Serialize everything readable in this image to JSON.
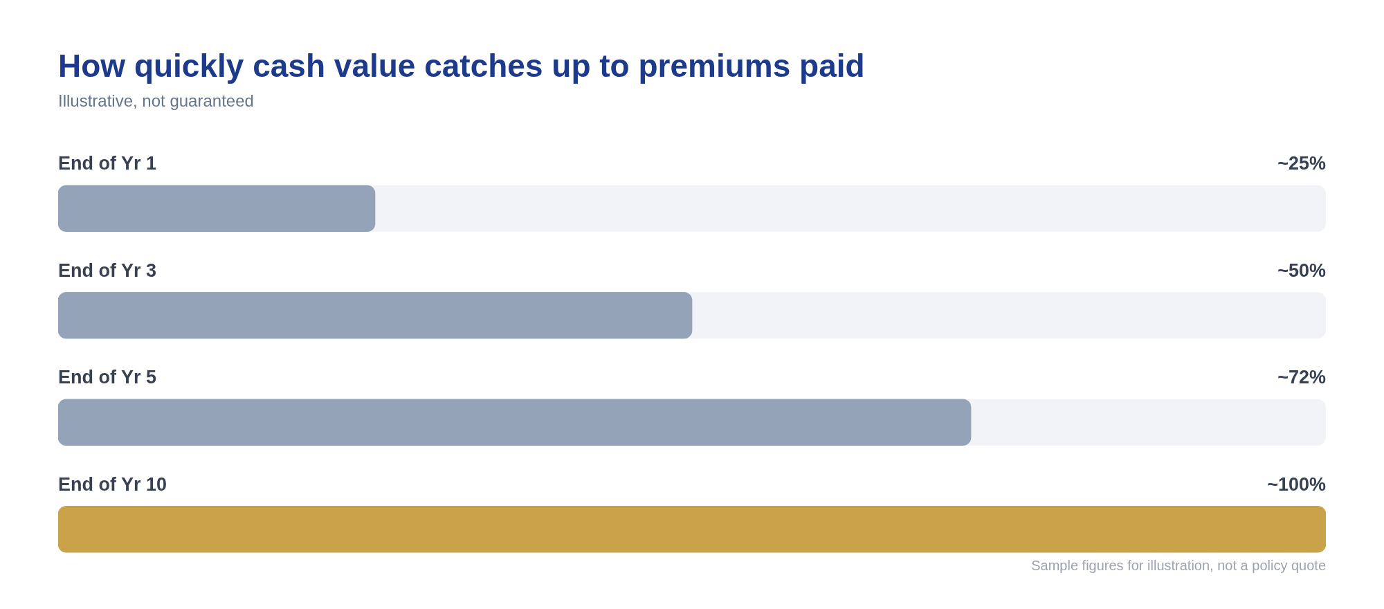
{
  "chart_data": {
    "type": "bar",
    "orientation": "horizontal",
    "title": "How quickly cash value catches up to premiums paid",
    "subtitle": "Illustrative, not guaranteed",
    "categories": [
      "End of Yr 1",
      "End of Yr 3",
      "End of Yr 5",
      "End of Yr 10"
    ],
    "values": [
      25,
      50,
      72,
      100
    ],
    "value_labels": [
      "~25%",
      "~50%",
      "~72%",
      "~100%"
    ],
    "colors": [
      "#94a3b8",
      "#94a3b8",
      "#94a3b8",
      "#c9a24a"
    ],
    "xlim": [
      0,
      100
    ],
    "tick_labels": "y",
    "annotations": [
      "Sample figures for illustration, not a policy quote"
    ]
  }
}
